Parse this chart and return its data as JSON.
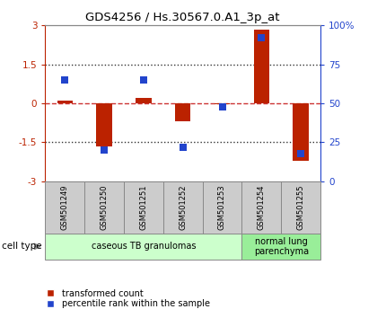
{
  "title": "GDS4256 / Hs.30567.0.A1_3p_at",
  "samples": [
    "GSM501249",
    "GSM501250",
    "GSM501251",
    "GSM501252",
    "GSM501253",
    "GSM501254",
    "GSM501255"
  ],
  "red_values": [
    0.1,
    -1.65,
    0.2,
    -0.7,
    -0.05,
    2.85,
    -2.2
  ],
  "blue_values_pct": [
    65,
    20,
    65,
    22,
    48,
    92,
    18
  ],
  "ylim": [
    -3,
    3
  ],
  "yticks_left": [
    -3,
    -1.5,
    0,
    1.5,
    3
  ],
  "yticks_left_labels": [
    "-3",
    "-1.5",
    "0",
    "1.5",
    "3"
  ],
  "yticks_right": [
    0,
    25,
    50,
    75,
    100
  ],
  "yticks_right_labels": [
    "0",
    "25",
    "50",
    "75",
    "100%"
  ],
  "red_color": "#bb2200",
  "blue_color": "#2244cc",
  "dashed_red_color": "#cc3333",
  "dotted_line_color": "#333333",
  "cell_type_groups": [
    {
      "label": "caseous TB granulomas",
      "start": 0,
      "end": 5,
      "color": "#ccffcc"
    },
    {
      "label": "normal lung\nparenchyma",
      "start": 5,
      "end": 7,
      "color": "#99ee99"
    }
  ],
  "bar_width": 0.4,
  "blue_marker_size": 6,
  "legend_red": "transformed count",
  "legend_blue": "percentile rank within the sample",
  "background_color": "#ffffff"
}
